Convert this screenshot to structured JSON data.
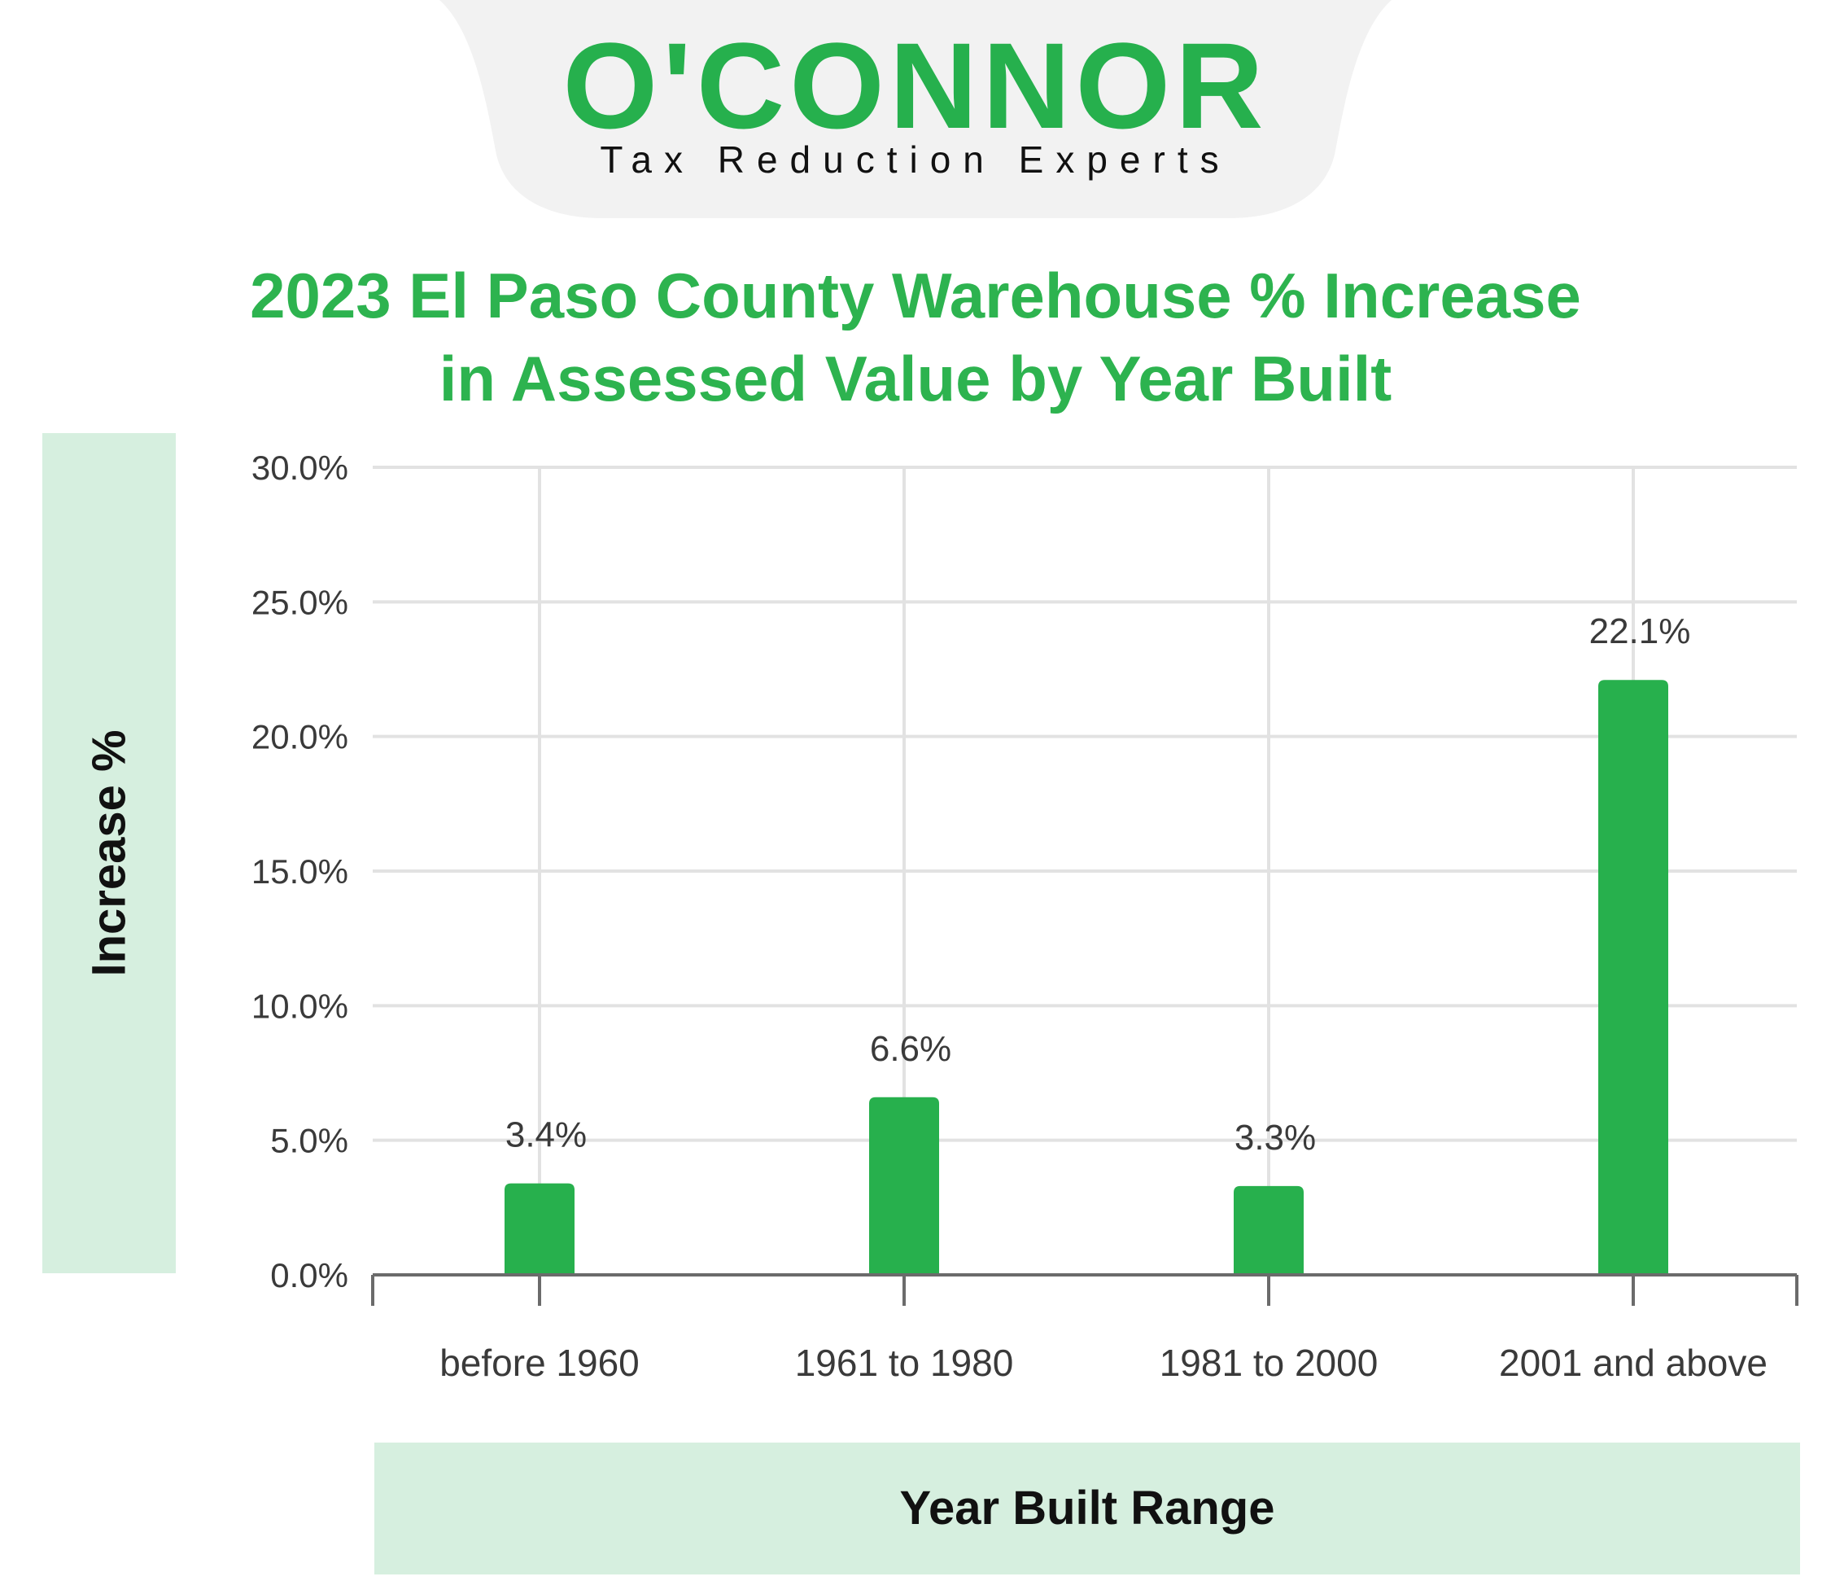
{
  "brand": {
    "name": "O'CONNOR",
    "tagline": "Tax Reduction Experts",
    "color": "#26b04d",
    "tab_color": "#f2f2f2"
  },
  "chart_data": {
    "type": "bar",
    "title": "2023 El Paso County Warehouse % Increase in Assessed Value by Year Built",
    "title_lines": [
      "2023 El Paso County Warehouse % Increase",
      "in Assessed Value by Year Built"
    ],
    "xlabel": "Year Built Range",
    "ylabel": "Increase %",
    "categories": [
      "before 1960",
      "1961 to 1980",
      "1981 to 2000",
      "2001 and above"
    ],
    "values": [
      3.4,
      6.6,
      3.3,
      22.1
    ],
    "value_labels": [
      "3.4%",
      "6.6%",
      "3.3%",
      "22.1%"
    ],
    "ylim": [
      0,
      30
    ],
    "yticks": [
      0,
      5,
      10,
      15,
      20,
      25,
      30
    ],
    "ytick_labels": [
      "0.0%",
      "5.0%",
      "10.0%",
      "15.0%",
      "20.0%",
      "25.0%",
      "30.0%"
    ],
    "grid": true,
    "bar_color": "#27b04d",
    "grid_color": "#e2e2e2",
    "axis_color": "#6b6b6b"
  }
}
